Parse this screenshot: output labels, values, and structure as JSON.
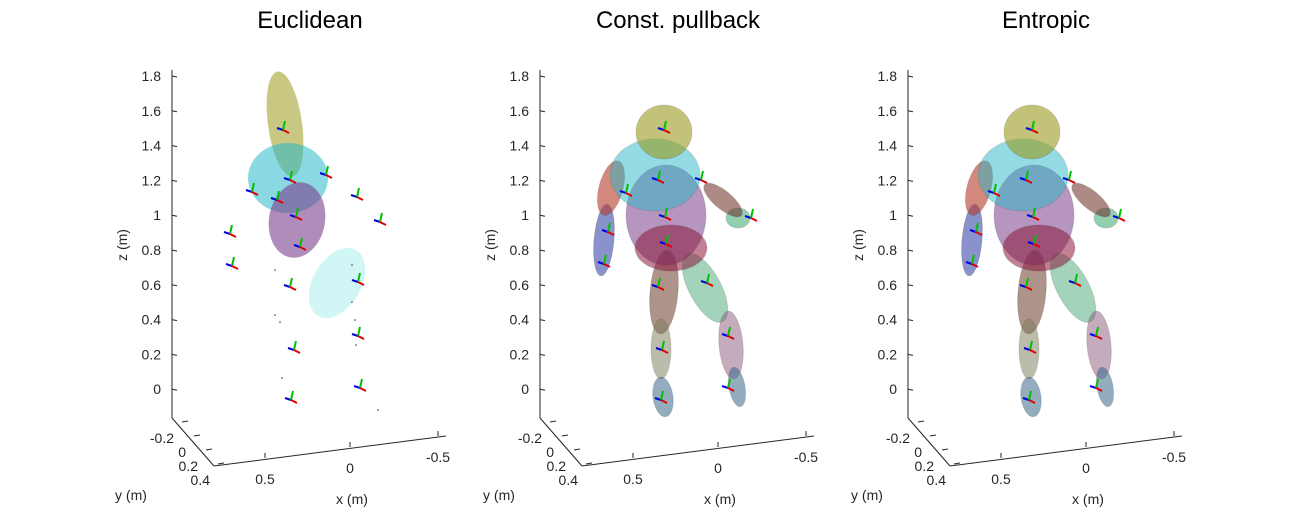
{
  "chart_data": [
    {
      "type": "scatter",
      "title": "Euclidean",
      "xlabel": "x (m)",
      "ylabel": "y (m)",
      "zlabel": "z (m)",
      "zticks": [
        "0",
        "0.2",
        "0.4",
        "0.6",
        "0.8",
        "1",
        "1.2",
        "1.4",
        "1.6",
        "1.8"
      ],
      "xticks": [
        "0.5",
        "0",
        "-0.5"
      ],
      "yticks": [
        "-0.2",
        "0",
        "0.2",
        "0.4"
      ],
      "zlim": [
        -0.1,
        1.85
      ],
      "xlim": [
        0.7,
        -0.6
      ],
      "ylim": [
        -0.3,
        0.45
      ],
      "body_fitted": false
    },
    {
      "type": "scatter",
      "title": "Const. pullback",
      "xlabel": "x (m)",
      "ylabel": "y (m)",
      "zlabel": "z (m)",
      "zticks": [
        "0",
        "0.2",
        "0.4",
        "0.6",
        "0.8",
        "1",
        "1.2",
        "1.4",
        "1.6",
        "1.8"
      ],
      "xticks": [
        "0.5",
        "0",
        "-0.5"
      ],
      "yticks": [
        "-0.2",
        "0",
        "0.2",
        "0.4"
      ],
      "zlim": [
        -0.1,
        1.85
      ],
      "xlim": [
        0.7,
        -0.6
      ],
      "ylim": [
        -0.3,
        0.45
      ],
      "body_fitted": true
    },
    {
      "type": "scatter",
      "title": "Entropic",
      "xlabel": "x (m)",
      "ylabel": "y (m)",
      "zlabel": "z (m)",
      "zticks": [
        "0",
        "0.2",
        "0.4",
        "0.6",
        "0.8",
        "1",
        "1.2",
        "1.4",
        "1.6",
        "1.8"
      ],
      "xticks": [
        "0.5",
        "0",
        "-0.5"
      ],
      "yticks": [
        "-0.2",
        "0",
        "0.2",
        "0.4"
      ],
      "zlim": [
        -0.1,
        1.85
      ],
      "xlim": [
        0.7,
        -0.6
      ],
      "ylim": [
        -0.3,
        0.45
      ],
      "body_fitted": true
    }
  ],
  "colors": {
    "head": "#9a9a1e",
    "chest": "#2ab8c8",
    "torso": "#7a3f8a",
    "pelvis": "#8a1a3a",
    "right_arm": "#3a4aa8",
    "right_forearm": "#b83a2a",
    "left_arm": "#6a2a22",
    "left_forearm": "#3aa870",
    "thigh_right": "#6a3a2a",
    "thigh_left": "#4aa878",
    "shin_right": "#7a7a5a",
    "shin_left": "#8a5a7a",
    "foot": "#3a6a8a",
    "euclid_cyan": "#c8f4f4",
    "frame_x": "#e00000",
    "frame_y": "#00c000",
    "frame_z": "#0000e0"
  }
}
